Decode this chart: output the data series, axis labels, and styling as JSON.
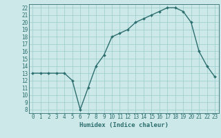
{
  "x": [
    0,
    1,
    2,
    3,
    4,
    5,
    6,
    7,
    8,
    9,
    10,
    11,
    12,
    13,
    14,
    15,
    16,
    17,
    18,
    19,
    20,
    21,
    22,
    23
  ],
  "y": [
    13,
    13,
    13,
    13,
    13,
    12,
    8,
    11,
    14,
    15.5,
    18,
    18.5,
    19,
    20,
    20.5,
    21,
    21.5,
    22,
    22,
    21.5,
    20,
    16,
    14,
    12.5
  ],
  "line_color": "#2d6e6e",
  "marker_color": "#2d6e6e",
  "bg_color": "#cce8e8",
  "grid_color": "#99cccc",
  "xlabel": "Humidex (Indice chaleur)",
  "xlim": [
    -0.5,
    23.5
  ],
  "ylim": [
    7.5,
    22.5
  ],
  "yticks": [
    8,
    9,
    10,
    11,
    12,
    13,
    14,
    15,
    16,
    17,
    18,
    19,
    20,
    21,
    22
  ],
  "xticks": [
    0,
    1,
    2,
    3,
    4,
    5,
    6,
    7,
    8,
    9,
    10,
    11,
    12,
    13,
    14,
    15,
    16,
    17,
    18,
    19,
    20,
    21,
    22,
    23
  ],
  "label_color": "#2d6e6e",
  "tick_color": "#2d6e6e",
  "font_family": "monospace",
  "xlabel_fontsize": 6.5,
  "tick_fontsize": 5.5,
  "line_width": 1.0,
  "marker_size": 2.0
}
